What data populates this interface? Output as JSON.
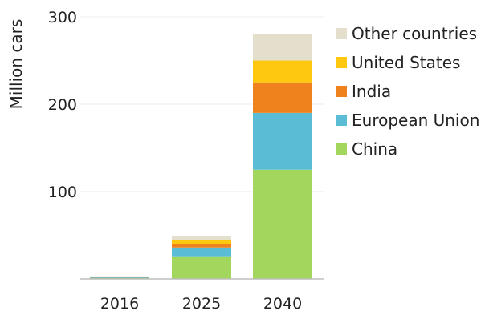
{
  "chart_data": {
    "type": "bar",
    "stacked": true,
    "title": "",
    "xlabel": "",
    "ylabel": "Million cars",
    "categories": [
      "2016",
      "2025",
      "2040"
    ],
    "ylim": [
      0,
      300
    ],
    "yticks": [
      100,
      200,
      300
    ],
    "grid": true,
    "legend_position": "right",
    "series": [
      {
        "name": "China",
        "color": "#a3d65c",
        "values": [
          1,
          25,
          125
        ]
      },
      {
        "name": "European Union",
        "color": "#5bbcd6",
        "values": [
          1,
          11,
          65
        ]
      },
      {
        "name": "India",
        "color": "#f0821e",
        "values": [
          0.2,
          4,
          35
        ]
      },
      {
        "name": "United States",
        "color": "#fdc80f",
        "values": [
          0.5,
          5,
          25
        ]
      },
      {
        "name": "Other countries",
        "color": "#e3dfcc",
        "values": [
          0.3,
          4,
          30
        ]
      }
    ],
    "legend_order": [
      "Other countries",
      "United States",
      "India",
      "European Union",
      "China"
    ]
  }
}
